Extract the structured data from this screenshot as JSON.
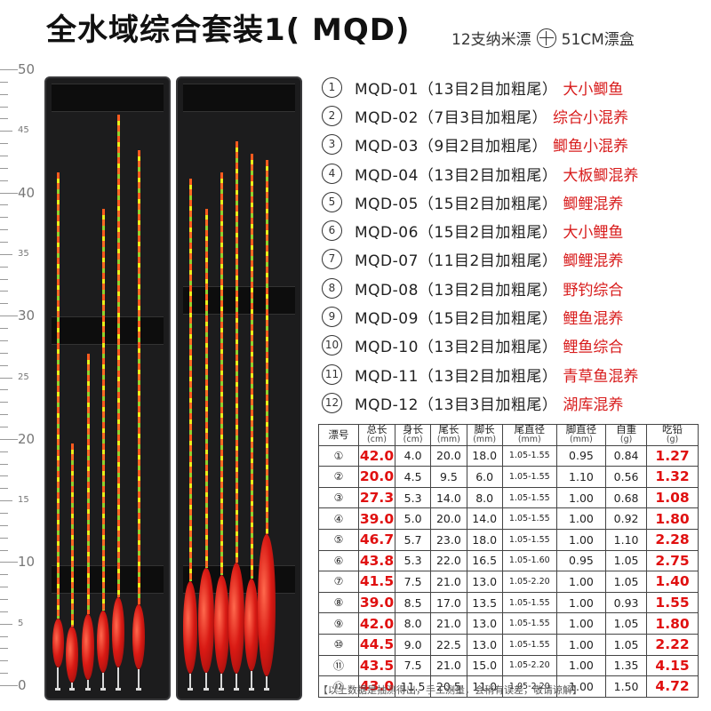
{
  "title": "全水域综合套装1( MQD)",
  "subtitle": {
    "left": "12支纳米漂",
    "right": "51CM漂盒"
  },
  "ruler": {
    "labels": [
      "50",
      "45",
      "40",
      "35",
      "30",
      "25",
      "20",
      "15",
      "10",
      "5",
      "0"
    ]
  },
  "models": [
    {
      "idx": "①",
      "code": "MQD-01（13目2目加粗尾）",
      "desc": "大小鲫鱼"
    },
    {
      "idx": "②",
      "code": "MQD-02（7目3目加粗尾）",
      "desc": "综合小混养"
    },
    {
      "idx": "③",
      "code": "MQD-03（9目2目加粗尾）",
      "desc": "鲫鱼小混养"
    },
    {
      "idx": "④",
      "code": "MQD-04（13目2目加粗尾）",
      "desc": "大板鲫混养"
    },
    {
      "idx": "⑤",
      "code": "MQD-05（15目2目加粗尾）",
      "desc": "鲫鲤混养"
    },
    {
      "idx": "⑥",
      "code": "MQD-06（15目2目加粗尾）",
      "desc": "大小鲤鱼"
    },
    {
      "idx": "⑦",
      "code": "MQD-07（11目2目加粗尾）",
      "desc": "鲫鲤混养"
    },
    {
      "idx": "⑧",
      "code": "MQD-08（13目2目加粗尾）",
      "desc": "野钓综合"
    },
    {
      "idx": "⑨",
      "code": "MQD-09（15目2目加粗尾）",
      "desc": "鲤鱼混养"
    },
    {
      "idx": "⑩",
      "code": "MQD-10（13目2目加粗尾）",
      "desc": "鲤鱼综合"
    },
    {
      "idx": "⑪",
      "code": "MQD-11（13目2目加粗尾）",
      "desc": "青草鱼混养"
    },
    {
      "idx": "⑫",
      "code": "MQD-12（13目3目加粗尾）",
      "desc": "湖库混养"
    }
  ],
  "table": {
    "headers": [
      {
        "name": "漂号",
        "unit": ""
      },
      {
        "name": "总长",
        "unit": "(cm)"
      },
      {
        "name": "身长",
        "unit": "(cm)"
      },
      {
        "name": "尾长",
        "unit": "(mm)"
      },
      {
        "name": "脚长",
        "unit": "(mm)"
      },
      {
        "name": "尾直径",
        "unit": "(mm)"
      },
      {
        "name": "脚直径",
        "unit": "(mm)"
      },
      {
        "name": "自重",
        "unit": "(g)"
      },
      {
        "name": "吃铅",
        "unit": "(g)"
      }
    ],
    "rows": [
      [
        "①",
        "42.0",
        "4.0",
        "20.0",
        "18.0",
        "1.05-1.55",
        "0.95",
        "0.84",
        "1.27"
      ],
      [
        "②",
        "20.0",
        "4.5",
        "9.5",
        "6.0",
        "1.05-1.55",
        "1.10",
        "0.56",
        "1.32"
      ],
      [
        "③",
        "27.3",
        "5.3",
        "14.0",
        "8.0",
        "1.05-1.55",
        "1.00",
        "0.68",
        "1.08"
      ],
      [
        "④",
        "39.0",
        "5.0",
        "20.0",
        "14.0",
        "1.05-1.55",
        "1.00",
        "0.92",
        "1.80"
      ],
      [
        "⑤",
        "46.7",
        "5.7",
        "23.0",
        "18.0",
        "1.05-1.55",
        "1.00",
        "1.10",
        "2.28"
      ],
      [
        "⑥",
        "43.8",
        "5.3",
        "22.0",
        "16.5",
        "1.05-1.60",
        "0.95",
        "1.05",
        "2.75"
      ],
      [
        "⑦",
        "41.5",
        "7.5",
        "21.0",
        "13.0",
        "1.05-2.20",
        "1.00",
        "1.05",
        "1.40"
      ],
      [
        "⑧",
        "39.0",
        "8.5",
        "17.0",
        "13.5",
        "1.05-1.55",
        "1.00",
        "0.93",
        "1.55"
      ],
      [
        "⑨",
        "42.0",
        "8.0",
        "21.0",
        "13.0",
        "1.05-1.55",
        "1.00",
        "1.05",
        "1.80"
      ],
      [
        "⑩",
        "44.5",
        "9.0",
        "22.5",
        "13.0",
        "1.05-1.55",
        "1.00",
        "1.05",
        "2.22"
      ],
      [
        "⑪",
        "43.5",
        "7.5",
        "21.0",
        "15.0",
        "1.05-2.20",
        "1.00",
        "1.35",
        "4.15"
      ],
      [
        "⑫",
        "43.0",
        "11.5",
        "20.5",
        "11.0",
        "1.05-2.20",
        "1.00",
        "1.50",
        "4.72"
      ]
    ]
  },
  "note": "【以上数据是抽测得出，手工测量，会稍有误差，敬请谅解】",
  "colors": {
    "accent_red": "#e01010",
    "desc_red": "#d81c1c",
    "box_bg": "#1c1c1d"
  }
}
